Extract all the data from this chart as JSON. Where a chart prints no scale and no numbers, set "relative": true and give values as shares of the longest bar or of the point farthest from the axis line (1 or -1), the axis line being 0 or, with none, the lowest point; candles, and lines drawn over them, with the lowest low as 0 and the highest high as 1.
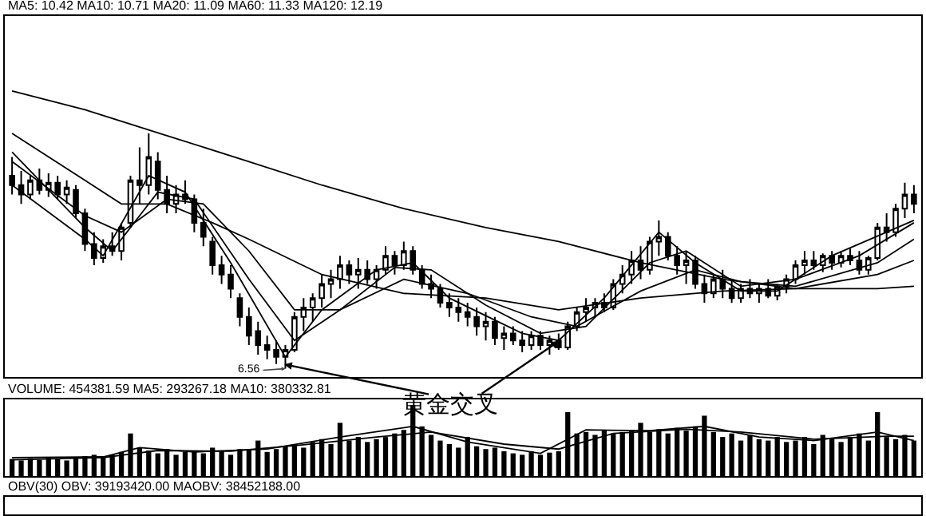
{
  "chart_data": [
    {
      "type": "candlestick",
      "relative": true,
      "color": "#000000",
      "categories": [
        null,
        null,
        null,
        null,
        null,
        null,
        null,
        null,
        null,
        null,
        null,
        null,
        null,
        null,
        null,
        null,
        null,
        null,
        null,
        null,
        null,
        null,
        null,
        null,
        null,
        null,
        null,
        null,
        null,
        null,
        null,
        null,
        null,
        null,
        null,
        null,
        null,
        null,
        null,
        null,
        null,
        null,
        null,
        null,
        null,
        null,
        null,
        null,
        null,
        null,
        null,
        null,
        null,
        null,
        null,
        null,
        null,
        null,
        null,
        null,
        null,
        null,
        null,
        null,
        null,
        null,
        null,
        null,
        null,
        null,
        null,
        null,
        null,
        null,
        null,
        null,
        null,
        null,
        null,
        null,
        null,
        null,
        null,
        null,
        null,
        null,
        null,
        null,
        null,
        null,
        null,
        null,
        null,
        null,
        null,
        null,
        null,
        null,
        null,
        null
      ],
      "ohlc": [
        [
          0.82,
          0.9,
          0.74,
          0.78
        ],
        [
          0.78,
          0.84,
          0.7,
          0.74
        ],
        [
          0.74,
          0.82,
          0.72,
          0.8
        ],
        [
          0.8,
          0.85,
          0.74,
          0.76
        ],
        [
          0.76,
          0.83,
          0.73,
          0.79
        ],
        [
          0.79,
          0.82,
          0.72,
          0.74
        ],
        [
          0.74,
          0.8,
          0.7,
          0.77
        ],
        [
          0.76,
          0.78,
          0.64,
          0.66
        ],
        [
          0.66,
          0.68,
          0.5,
          0.53
        ],
        [
          0.53,
          0.58,
          0.44,
          0.47
        ],
        [
          0.47,
          0.55,
          0.45,
          0.52
        ],
        [
          0.52,
          0.58,
          0.48,
          0.5
        ],
        [
          0.5,
          0.62,
          0.46,
          0.6
        ],
        [
          0.62,
          0.82,
          0.6,
          0.8
        ],
        [
          0.8,
          0.94,
          0.7,
          0.78
        ],
        [
          0.78,
          1.0,
          0.74,
          0.9
        ],
        [
          0.88,
          0.92,
          0.72,
          0.76
        ],
        [
          0.76,
          0.82,
          0.66,
          0.7
        ],
        [
          0.7,
          0.78,
          0.66,
          0.74
        ],
        [
          0.74,
          0.8,
          0.7,
          0.72
        ],
        [
          0.72,
          0.74,
          0.58,
          0.62
        ],
        [
          0.62,
          0.68,
          0.52,
          0.56
        ],
        [
          0.54,
          0.56,
          0.4,
          0.44
        ],
        [
          0.44,
          0.48,
          0.36,
          0.4
        ],
        [
          0.4,
          0.44,
          0.3,
          0.34
        ],
        [
          0.3,
          0.32,
          0.18,
          0.22
        ],
        [
          0.22,
          0.26,
          0.1,
          0.14
        ],
        [
          0.16,
          0.2,
          0.06,
          0.1
        ],
        [
          0.1,
          0.14,
          0.04,
          0.08
        ],
        [
          0.08,
          0.12,
          0.02,
          0.05
        ],
        [
          0.05,
          0.1,
          0.0,
          0.08
        ],
        [
          0.08,
          0.24,
          0.07,
          0.22
        ],
        [
          0.22,
          0.3,
          0.16,
          0.26
        ],
        [
          0.26,
          0.32,
          0.2,
          0.3
        ],
        [
          0.3,
          0.4,
          0.26,
          0.36
        ],
        [
          0.36,
          0.42,
          0.3,
          0.38
        ],
        [
          0.38,
          0.48,
          0.34,
          0.44
        ],
        [
          0.44,
          0.46,
          0.36,
          0.4
        ],
        [
          0.4,
          0.47,
          0.34,
          0.42
        ],
        [
          0.42,
          0.46,
          0.36,
          0.38
        ],
        [
          0.38,
          0.44,
          0.34,
          0.42
        ],
        [
          0.42,
          0.52,
          0.4,
          0.48
        ],
        [
          0.48,
          0.5,
          0.4,
          0.44
        ],
        [
          0.44,
          0.54,
          0.42,
          0.5
        ],
        [
          0.5,
          0.52,
          0.4,
          0.42
        ],
        [
          0.42,
          0.44,
          0.34,
          0.36
        ],
        [
          0.36,
          0.4,
          0.3,
          0.34
        ],
        [
          0.34,
          0.36,
          0.26,
          0.28
        ],
        [
          0.28,
          0.32,
          0.22,
          0.26
        ],
        [
          0.26,
          0.3,
          0.2,
          0.24
        ],
        [
          0.24,
          0.28,
          0.18,
          0.22
        ],
        [
          0.22,
          0.26,
          0.14,
          0.18
        ],
        [
          0.18,
          0.24,
          0.12,
          0.2
        ],
        [
          0.2,
          0.22,
          0.1,
          0.13
        ],
        [
          0.13,
          0.18,
          0.08,
          0.15
        ],
        [
          0.15,
          0.18,
          0.1,
          0.12
        ],
        [
          0.12,
          0.16,
          0.07,
          0.1
        ],
        [
          0.1,
          0.16,
          0.08,
          0.14
        ],
        [
          0.14,
          0.16,
          0.08,
          0.1
        ],
        [
          0.1,
          0.14,
          0.06,
          0.12
        ],
        [
          0.12,
          0.15,
          0.08,
          0.09
        ],
        [
          0.09,
          0.2,
          0.08,
          0.18
        ],
        [
          0.18,
          0.26,
          0.16,
          0.24
        ],
        [
          0.24,
          0.3,
          0.2,
          0.26
        ],
        [
          0.26,
          0.3,
          0.22,
          0.28
        ],
        [
          0.28,
          0.32,
          0.24,
          0.26
        ],
        [
          0.26,
          0.38,
          0.25,
          0.36
        ],
        [
          0.36,
          0.44,
          0.32,
          0.4
        ],
        [
          0.4,
          0.5,
          0.36,
          0.46
        ],
        [
          0.46,
          0.52,
          0.38,
          0.42
        ],
        [
          0.42,
          0.56,
          0.4,
          0.54
        ],
        [
          0.54,
          0.63,
          0.48,
          0.56
        ],
        [
          0.56,
          0.58,
          0.46,
          0.48
        ],
        [
          0.48,
          0.52,
          0.4,
          0.44
        ],
        [
          0.44,
          0.5,
          0.36,
          0.46
        ],
        [
          0.46,
          0.48,
          0.34,
          0.36
        ],
        [
          0.36,
          0.4,
          0.28,
          0.32
        ],
        [
          0.32,
          0.4,
          0.3,
          0.38
        ],
        [
          0.38,
          0.42,
          0.3,
          0.34
        ],
        [
          0.34,
          0.38,
          0.28,
          0.3
        ],
        [
          0.3,
          0.36,
          0.28,
          0.34
        ],
        [
          0.34,
          0.38,
          0.3,
          0.32
        ],
        [
          0.32,
          0.36,
          0.28,
          0.34
        ],
        [
          0.34,
          0.38,
          0.3,
          0.31
        ],
        [
          0.31,
          0.36,
          0.29,
          0.35
        ],
        [
          0.35,
          0.4,
          0.32,
          0.38
        ],
        [
          0.38,
          0.46,
          0.36,
          0.44
        ],
        [
          0.44,
          0.5,
          0.4,
          0.46
        ],
        [
          0.46,
          0.5,
          0.42,
          0.44
        ],
        [
          0.44,
          0.49,
          0.41,
          0.48
        ],
        [
          0.48,
          0.5,
          0.42,
          0.45
        ],
        [
          0.45,
          0.5,
          0.43,
          0.48
        ],
        [
          0.48,
          0.51,
          0.44,
          0.46
        ],
        [
          0.46,
          0.5,
          0.4,
          0.42
        ],
        [
          0.42,
          0.48,
          0.4,
          0.47
        ],
        [
          0.47,
          0.62,
          0.46,
          0.6
        ],
        [
          0.6,
          0.66,
          0.54,
          0.58
        ],
        [
          0.58,
          0.7,
          0.56,
          0.68
        ],
        [
          0.68,
          0.79,
          0.64,
          0.74
        ],
        [
          0.74,
          0.78,
          0.66,
          0.7
        ]
      ],
      "series": [
        {
          "type": "line",
          "color": "#000000",
          "values": [
            1.18,
            null,
            null,
            null,
            null,
            null,
            null,
            null,
            1.1,
            null,
            null,
            null,
            null,
            null,
            null,
            null,
            null,
            0.99,
            null,
            null,
            null,
            null,
            null,
            null,
            null,
            null,
            0.88,
            null,
            null,
            null,
            null,
            null,
            null,
            null,
            0.78,
            null,
            null,
            null,
            null,
            null,
            null,
            null,
            null,
            0.68,
            null,
            null,
            null,
            null,
            null,
            null,
            null,
            null,
            0.6,
            null,
            null,
            null,
            null,
            null,
            null,
            null,
            0.54,
            null,
            null,
            null,
            null,
            null,
            null,
            null,
            null,
            0.45,
            null,
            null,
            null,
            null,
            null,
            null,
            null,
            null,
            0.38,
            null,
            null,
            null,
            null,
            null,
            null,
            null,
            0.34,
            null,
            null,
            null,
            null,
            null,
            null,
            null,
            null,
            0.34,
            null,
            null,
            null,
            0.35
          ]
        },
        {
          "type": "line",
          "color": "#000000",
          "values": [
            1.0,
            null,
            null,
            null,
            null,
            null,
            null,
            null,
            0.8,
            null,
            null,
            null,
            0.7,
            null,
            null,
            null,
            null,
            0.7,
            null,
            null,
            null,
            null,
            0.62,
            null,
            null,
            null,
            0.55,
            null,
            null,
            null,
            null,
            null,
            null,
            null,
            0.4,
            null,
            null,
            null,
            null,
            null,
            null,
            null,
            null,
            0.32,
            null,
            null,
            null,
            null,
            null,
            null,
            null,
            null,
            0.3,
            null,
            null,
            null,
            null,
            null,
            null,
            null,
            0.25,
            null,
            null,
            null,
            null,
            null,
            null,
            null,
            null,
            0.3,
            null,
            null,
            null,
            null,
            null,
            null,
            null,
            null,
            0.33,
            null,
            null,
            null,
            null,
            null,
            null,
            null,
            0.34,
            null,
            null,
            null,
            null,
            null,
            null,
            null,
            null,
            0.4,
            null,
            null,
            null,
            0.46
          ]
        },
        {
          "type": "line",
          "color": "#000000",
          "values": [
            0.88,
            null,
            null,
            null,
            null,
            null,
            null,
            null,
            0.65,
            null,
            null,
            null,
            0.58,
            null,
            null,
            null,
            null,
            0.72,
            null,
            null,
            null,
            0.7,
            null,
            null,
            null,
            null,
            0.5,
            null,
            null,
            null,
            null,
            0.25,
            null,
            null,
            null,
            null,
            0.25,
            null,
            null,
            null,
            null,
            null,
            null,
            0.38,
            null,
            null,
            null,
            null,
            null,
            null,
            0.32,
            null,
            null,
            null,
            null,
            null,
            null,
            0.22,
            null,
            null,
            null,
            null,
            0.18,
            null,
            null,
            null,
            null,
            null,
            null,
            0.33,
            null,
            null,
            null,
            null,
            null,
            0.42,
            null,
            null,
            null,
            null,
            0.37,
            null,
            null,
            null,
            null,
            null,
            0.35,
            null,
            null,
            null,
            null,
            null,
            null,
            null,
            null,
            0.45,
            null,
            null,
            null,
            0.55
          ]
        },
        {
          "type": "line",
          "color": "#000000",
          "values": [
            0.92,
            null,
            null,
            null,
            null,
            null,
            null,
            null,
            0.6,
            null,
            null,
            0.5,
            null,
            null,
            null,
            null,
            0.75,
            null,
            null,
            null,
            0.72,
            null,
            null,
            null,
            null,
            null,
            0.38,
            null,
            null,
            null,
            null,
            0.12,
            null,
            null,
            null,
            null,
            0.25,
            null,
            null,
            null,
            null,
            null,
            0.43,
            null,
            null,
            null,
            0.42,
            null,
            null,
            null,
            null,
            null,
            0.27,
            null,
            null,
            null,
            null,
            null,
            0.15,
            null,
            null,
            null,
            null,
            0.18,
            null,
            null,
            null,
            null,
            null,
            null,
            0.45,
            null,
            null,
            null,
            0.5,
            null,
            null,
            null,
            null,
            null,
            0.35,
            null,
            null,
            null,
            null,
            null,
            0.38,
            null,
            null,
            null,
            null,
            null,
            null,
            0.48,
            null,
            null,
            null,
            null,
            null,
            0.62
          ]
        },
        {
          "type": "line",
          "color": "#000000",
          "values": [
            0.78,
            null,
            null,
            null,
            null,
            null,
            null,
            null,
            0.55,
            null,
            0.48,
            null,
            null,
            null,
            null,
            0.82,
            null,
            null,
            null,
            0.75,
            null,
            null,
            null,
            null,
            0.45,
            null,
            null,
            null,
            null,
            null,
            0.05,
            null,
            null,
            null,
            0.25,
            null,
            null,
            null,
            null,
            null,
            0.42,
            null,
            null,
            null,
            0.45,
            null,
            null,
            null,
            0.3,
            null,
            null,
            null,
            null,
            null,
            null,
            null,
            0.15,
            null,
            null,
            null,
            0.12,
            null,
            null,
            null,
            null,
            0.3,
            null,
            null,
            null,
            null,
            null,
            0.58,
            null,
            null,
            null,
            0.45,
            null,
            null,
            null,
            null,
            0.33,
            null,
            null,
            null,
            0.33,
            null,
            null,
            null,
            null,
            null,
            0.48,
            null,
            null,
            null,
            null,
            null,
            0.58,
            null,
            null,
            0.63
          ]
        }
      ],
      "annotations": [
        "MA5: 10.42 MA10: 10.71 MA20: 11.09 MA60: 11.33 MA120: 12.19",
        "6.56",
        "黄金交叉"
      ]
    },
    {
      "type": "bar",
      "relative": true,
      "categories": [
        null,
        null,
        null,
        null,
        null,
        null,
        null,
        null,
        null,
        null,
        null,
        null,
        null,
        null,
        null,
        null,
        null,
        null,
        null,
        null,
        null,
        null,
        null,
        null,
        null,
        null,
        null,
        null,
        null,
        null,
        null,
        null,
        null,
        null,
        null,
        null,
        null,
        null,
        null,
        null,
        null,
        null,
        null,
        null,
        null,
        null,
        null,
        null,
        null,
        null,
        null,
        null,
        null,
        null,
        null,
        null,
        null,
        null,
        null,
        null,
        null,
        null,
        null,
        null,
        null,
        null,
        null,
        null,
        null,
        null,
        null,
        null,
        null,
        null,
        null,
        null,
        null,
        null,
        null,
        null,
        null,
        null,
        null,
        null,
        null,
        null,
        null,
        null,
        null,
        null,
        null,
        null,
        null,
        null,
        null,
        null,
        null,
        null,
        null,
        null
      ],
      "series": [
        {
          "color": "#000000",
          "values": [
            0.24,
            0.22,
            0.25,
            0.23,
            0.26,
            0.24,
            0.22,
            0.25,
            0.28,
            0.3,
            0.26,
            0.3,
            0.34,
            0.6,
            0.4,
            0.36,
            0.32,
            0.38,
            0.3,
            0.34,
            0.36,
            0.32,
            0.4,
            0.35,
            0.3,
            0.38,
            0.36,
            0.5,
            0.34,
            0.38,
            0.42,
            0.45,
            0.4,
            0.48,
            0.52,
            0.45,
            0.75,
            0.5,
            0.55,
            0.48,
            0.52,
            0.55,
            0.6,
            0.65,
            1.0,
            0.7,
            0.58,
            0.5,
            0.45,
            0.4,
            0.55,
            0.42,
            0.38,
            0.4,
            0.35,
            0.32,
            0.3,
            0.35,
            0.3,
            0.33,
            0.35,
            0.9,
            0.6,
            0.62,
            0.58,
            0.65,
            0.6,
            0.62,
            0.64,
            0.75,
            0.62,
            0.66,
            0.6,
            0.68,
            0.64,
            0.7,
            0.85,
            0.62,
            0.55,
            0.6,
            0.5,
            0.58,
            0.52,
            0.5,
            0.55,
            0.48,
            0.5,
            0.55,
            0.45,
            0.58,
            0.52,
            0.48,
            0.55,
            0.6,
            0.5,
            0.9,
            0.55,
            0.52,
            0.58,
            0.5
          ]
        },
        {
          "type": "line",
          "color": "#000000",
          "values": [
            0.26,
            null,
            null,
            null,
            null,
            null,
            null,
            null,
            null,
            null,
            0.27,
            null,
            null,
            null,
            0.4,
            null,
            null,
            null,
            null,
            null,
            0.34,
            null,
            null,
            null,
            null,
            null,
            null,
            null,
            0.38,
            null,
            null,
            null,
            null,
            null,
            null,
            null,
            0.55,
            null,
            null,
            null,
            null,
            null,
            null,
            null,
            0.7,
            null,
            null,
            null,
            null,
            null,
            0.48,
            null,
            null,
            null,
            null,
            null,
            null,
            null,
            0.32,
            null,
            null,
            null,
            null,
            0.65,
            null,
            null,
            null,
            null,
            null,
            null,
            0.64,
            null,
            null,
            null,
            null,
            null,
            0.7,
            null,
            null,
            null,
            null,
            null,
            0.55,
            null,
            null,
            null,
            null,
            null,
            0.5,
            null,
            null,
            null,
            null,
            null,
            null,
            0.62,
            null,
            null,
            null,
            0.5
          ]
        },
        {
          "type": "line",
          "color": "#000000",
          "values": [
            0.23,
            null,
            null,
            null,
            null,
            null,
            null,
            null,
            null,
            null,
            0.26,
            null,
            null,
            null,
            null,
            null,
            0.36,
            null,
            null,
            null,
            null,
            null,
            null,
            null,
            0.35,
            null,
            null,
            null,
            null,
            null,
            null,
            null,
            0.44,
            null,
            null,
            null,
            null,
            null,
            null,
            null,
            0.55,
            null,
            null,
            null,
            null,
            null,
            0.62,
            null,
            null,
            null,
            null,
            null,
            null,
            null,
            0.45,
            null,
            null,
            null,
            null,
            null,
            0.38,
            null,
            null,
            null,
            null,
            null,
            0.6,
            null,
            null,
            null,
            null,
            null,
            null,
            null,
            0.66,
            null,
            null,
            null,
            null,
            null,
            0.62,
            null,
            null,
            null,
            null,
            null,
            null,
            null,
            0.52,
            null,
            null,
            null,
            null,
            null,
            null,
            null,
            0.56,
            null,
            null,
            0.56
          ]
        }
      ],
      "annotations": [
        "VOLUME: 454381.59 MA5: 293267.18 MA10: 380332.81"
      ]
    },
    {
      "type": "other",
      "annotations": [
        "OBV(30) OBV: 39193420.00 MAOBV: 38452188.00"
      ]
    }
  ]
}
